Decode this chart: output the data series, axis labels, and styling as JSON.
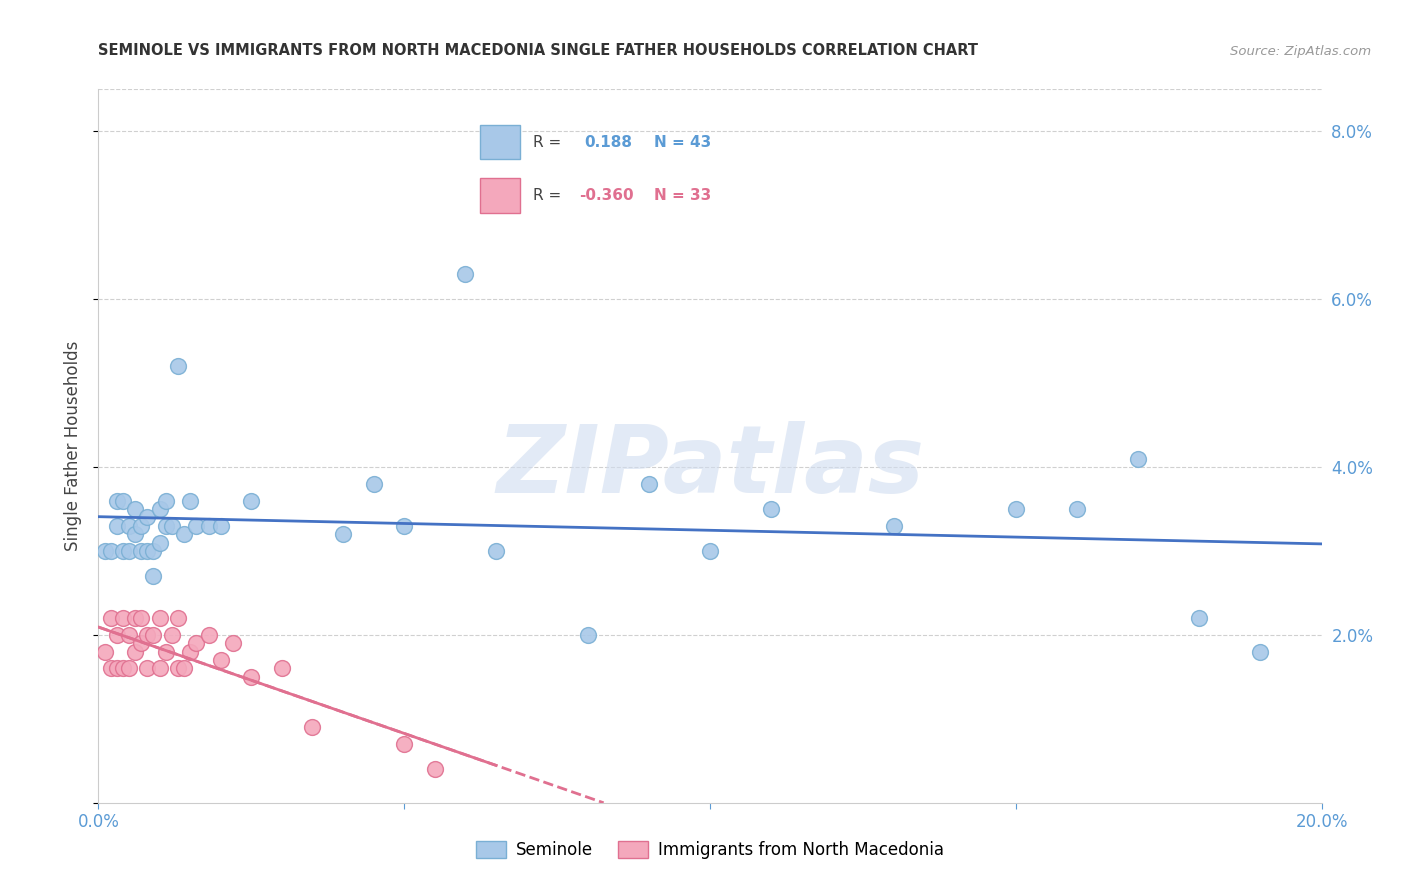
{
  "title": "SEMINOLE VS IMMIGRANTS FROM NORTH MACEDONIA SINGLE FATHER HOUSEHOLDS CORRELATION CHART",
  "source": "Source: ZipAtlas.com",
  "ylabel": "Single Father Households",
  "xlim": [
    0.0,
    0.2
  ],
  "ylim": [
    0.0,
    0.085
  ],
  "yticks": [
    0.0,
    0.02,
    0.04,
    0.06,
    0.08
  ],
  "xticks": [
    0.0,
    0.05,
    0.1,
    0.15,
    0.2
  ],
  "xtick_labels": [
    "0.0%",
    "",
    "",
    "",
    "20.0%"
  ],
  "ytick_labels_right": [
    "",
    "2.0%",
    "4.0%",
    "6.0%",
    "8.0%"
  ],
  "blue_scatter_color": "#a8c8e8",
  "blue_scatter_edge": "#7aafd4",
  "pink_scatter_color": "#f4a8bc",
  "pink_scatter_edge": "#e07090",
  "blue_line_color": "#4472c4",
  "pink_line_color": "#e07090",
  "watermark_text": "ZIPatlas",
  "watermark_color": "#d0ddf0",
  "legend_R1": "0.188",
  "legend_N1": "43",
  "legend_R2": "-0.360",
  "legend_N2": "33",
  "seminole_x": [
    0.001,
    0.002,
    0.003,
    0.003,
    0.004,
    0.004,
    0.005,
    0.005,
    0.006,
    0.006,
    0.007,
    0.007,
    0.008,
    0.008,
    0.009,
    0.009,
    0.01,
    0.01,
    0.011,
    0.011,
    0.012,
    0.013,
    0.014,
    0.015,
    0.016,
    0.018,
    0.02,
    0.025,
    0.04,
    0.045,
    0.05,
    0.06,
    0.065,
    0.08,
    0.09,
    0.1,
    0.11,
    0.13,
    0.15,
    0.16,
    0.17,
    0.18,
    0.19
  ],
  "seminole_y": [
    0.03,
    0.03,
    0.033,
    0.036,
    0.03,
    0.036,
    0.03,
    0.033,
    0.032,
    0.035,
    0.03,
    0.033,
    0.03,
    0.034,
    0.027,
    0.03,
    0.031,
    0.035,
    0.033,
    0.036,
    0.033,
    0.052,
    0.032,
    0.036,
    0.033,
    0.033,
    0.033,
    0.036,
    0.032,
    0.038,
    0.033,
    0.063,
    0.03,
    0.02,
    0.038,
    0.03,
    0.035,
    0.033,
    0.035,
    0.035,
    0.041,
    0.022,
    0.018
  ],
  "macedonia_x": [
    0.001,
    0.002,
    0.002,
    0.003,
    0.003,
    0.004,
    0.004,
    0.005,
    0.005,
    0.006,
    0.006,
    0.007,
    0.007,
    0.008,
    0.008,
    0.009,
    0.01,
    0.01,
    0.011,
    0.012,
    0.013,
    0.013,
    0.014,
    0.015,
    0.016,
    0.018,
    0.02,
    0.022,
    0.025,
    0.03,
    0.035,
    0.05,
    0.055
  ],
  "macedonia_y": [
    0.018,
    0.016,
    0.022,
    0.016,
    0.02,
    0.022,
    0.016,
    0.02,
    0.016,
    0.022,
    0.018,
    0.019,
    0.022,
    0.02,
    0.016,
    0.02,
    0.022,
    0.016,
    0.018,
    0.02,
    0.016,
    0.022,
    0.016,
    0.018,
    0.019,
    0.02,
    0.017,
    0.019,
    0.015,
    0.016,
    0.009,
    0.007,
    0.004
  ]
}
